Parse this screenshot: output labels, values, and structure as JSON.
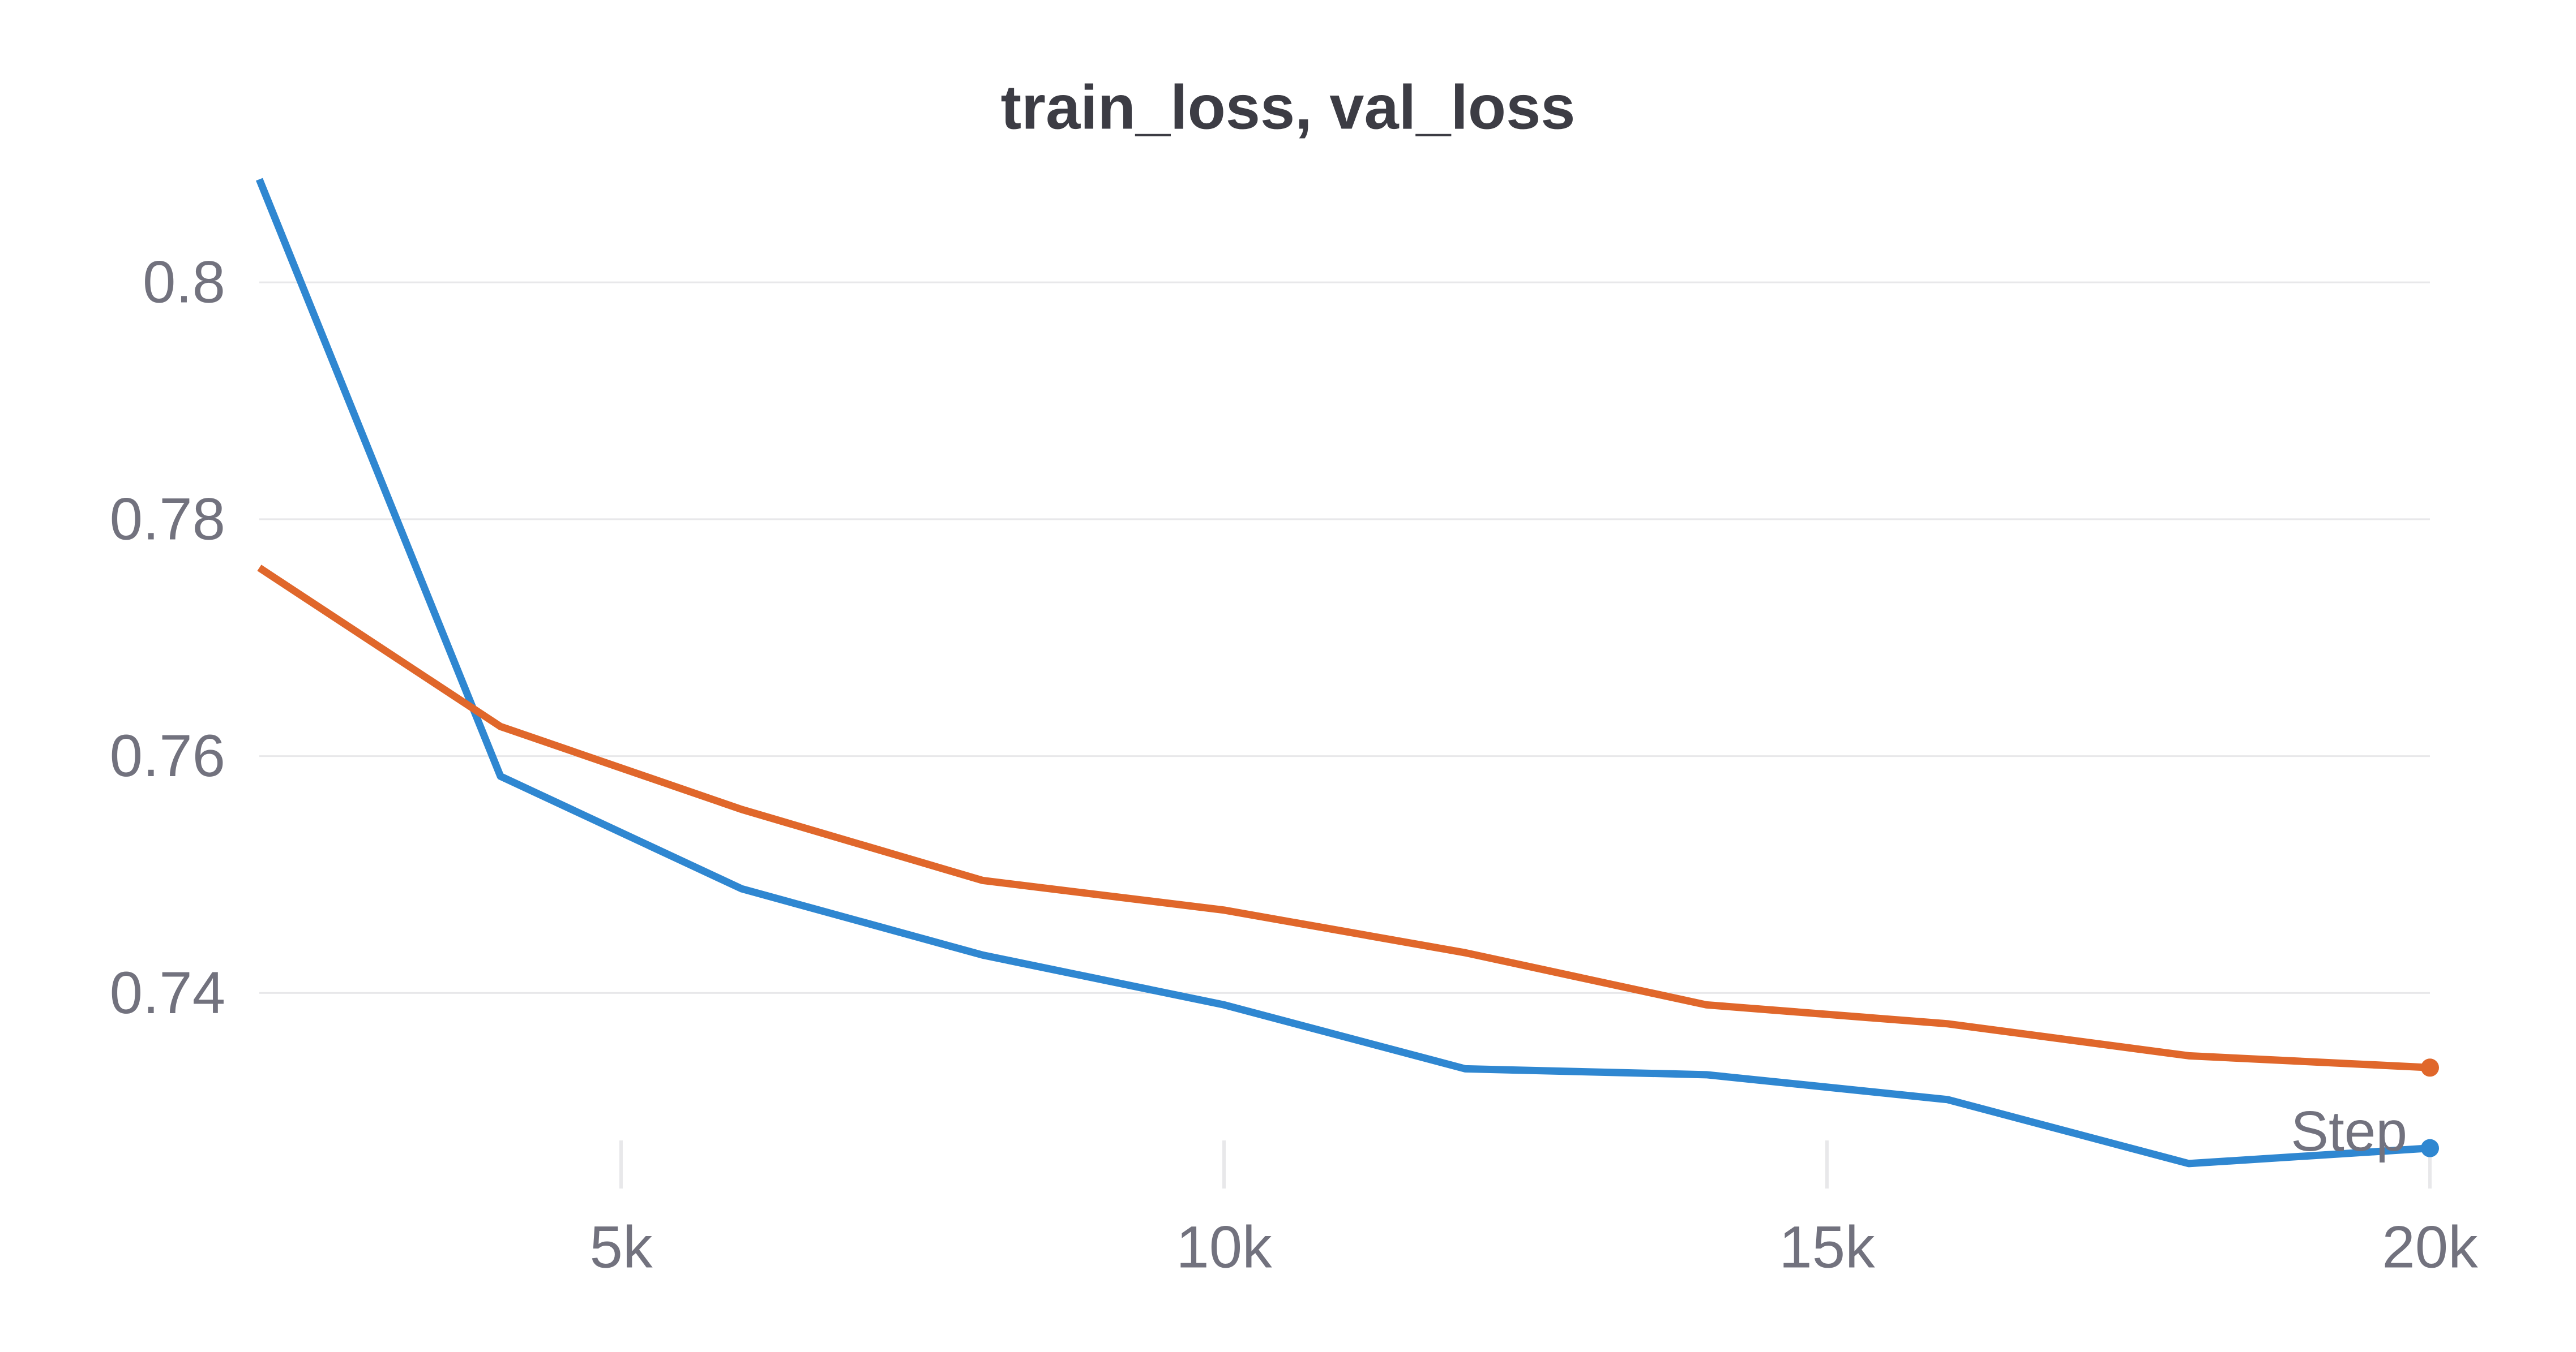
{
  "chart_data": {
    "type": "line",
    "title": "train_loss, val_loss",
    "xlabel": "Step",
    "ylabel": "",
    "x": [
      2000,
      4000,
      6000,
      8000,
      10000,
      12000,
      14000,
      16000,
      18000,
      20000
    ],
    "series": [
      {
        "name": "train_loss",
        "color": "#2f87d1",
        "values": [
          0.8087,
          0.7583,
          0.7488,
          0.7432,
          0.739,
          0.7336,
          0.7331,
          0.731,
          0.7256,
          0.7269
        ]
      },
      {
        "name": "val_loss",
        "color": "#e0672b",
        "values": [
          0.7759,
          0.7625,
          0.7555,
          0.7495,
          0.747,
          0.7434,
          0.739,
          0.7374,
          0.7347,
          0.7337
        ]
      }
    ],
    "x_ticks": [
      5000,
      10000,
      15000,
      20000
    ],
    "x_tick_labels": [
      "5k",
      "10k",
      "15k",
      "20k"
    ],
    "y_ticks": [
      0.8,
      0.78,
      0.76,
      0.74
    ],
    "y_tick_labels": [
      "0.8",
      "0.78",
      "0.76",
      "0.74"
    ],
    "xlim": [
      2000,
      20000
    ],
    "ylim": [
      0.7276,
      0.8119
    ],
    "grid": "horizontal",
    "legend": "none",
    "endpoint_markers": true
  },
  "styles": {
    "background": "#ffffff",
    "title_color": "#3c3c44",
    "tick_color": "#72727e",
    "grid_color": "#e8e8ea"
  }
}
